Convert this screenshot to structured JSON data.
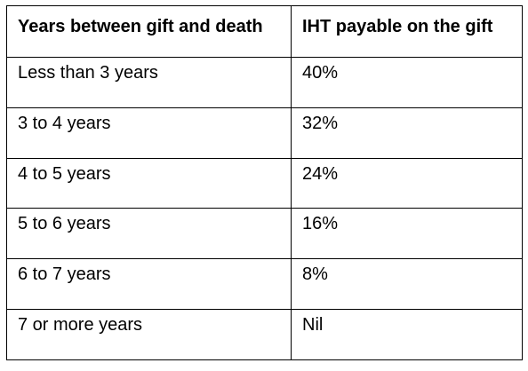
{
  "table": {
    "headers": [
      "Years between gift and death",
      "IHT payable on the gift"
    ],
    "rows": [
      [
        "Less than 3 years",
        "40%"
      ],
      [
        "3 to 4 years",
        "32%"
      ],
      [
        "4 to 5 years",
        "24%"
      ],
      [
        "5 to 6 years",
        "16%"
      ],
      [
        "6 to 7 years",
        "8%"
      ],
      [
        "7 or more years",
        "Nil"
      ]
    ]
  }
}
